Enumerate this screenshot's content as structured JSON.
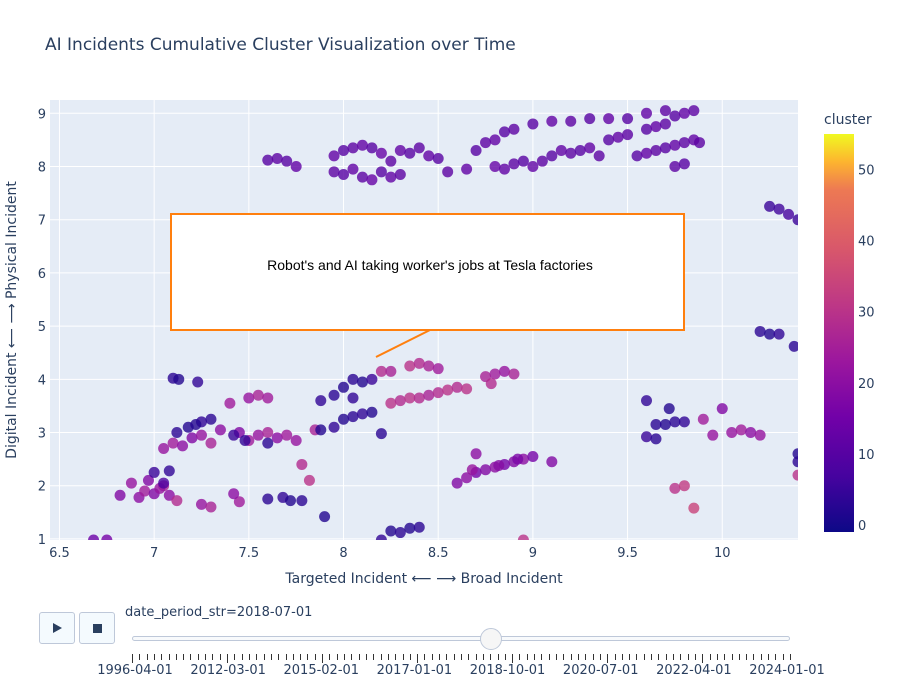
{
  "chart_data": {
    "type": "scatter",
    "title": "AI Incidents Cumulative Cluster Visualization over Time",
    "xlabel": "Targeted Incident ⟵ ⟶ Broad Incident",
    "ylabel": "Digital Incident ⟵ ⟶ Physical Incident",
    "xlim": [
      6.45,
      10.4
    ],
    "ylim": [
      0.98,
      9.25
    ],
    "x_ticks": [
      6.5,
      7,
      7.5,
      8,
      8.5,
      9,
      9.5,
      10
    ],
    "y_ticks": [
      1,
      2,
      3,
      4,
      5,
      6,
      7,
      8,
      9
    ],
    "grid": true,
    "colorscale": "plasma",
    "colorbar": {
      "title": "cluster",
      "range": [
        -1,
        55
      ],
      "ticks": [
        0,
        10,
        20,
        30,
        40,
        50
      ]
    },
    "annotation": {
      "text": "Robot's and AI taking worker's jobs at Tesla factories",
      "x": 8.17,
      "y": 4.45
    },
    "points": [
      [
        6.68,
        0.98,
        14
      ],
      [
        6.75,
        0.98,
        16
      ],
      [
        6.82,
        1.82,
        18
      ],
      [
        6.88,
        2.05,
        22
      ],
      [
        6.92,
        1.78,
        20
      ],
      [
        6.95,
        1.9,
        24
      ],
      [
        7.0,
        1.85,
        18
      ],
      [
        7.05,
        2.0,
        26
      ],
      [
        7.08,
        1.82,
        20
      ],
      [
        7.12,
        1.72,
        28
      ],
      [
        6.97,
        2.1,
        18
      ],
      [
        7.03,
        1.95,
        22
      ],
      [
        7.0,
        2.25,
        5
      ],
      [
        7.08,
        2.28,
        4
      ],
      [
        7.05,
        2.05,
        8
      ],
      [
        7.05,
        2.7,
        22
      ],
      [
        7.1,
        2.8,
        24
      ],
      [
        7.15,
        2.75,
        20
      ],
      [
        7.2,
        2.9,
        18
      ],
      [
        7.25,
        2.95,
        22
      ],
      [
        7.3,
        2.8,
        26
      ],
      [
        7.35,
        3.05,
        20
      ],
      [
        7.45,
        3.0,
        18
      ],
      [
        7.5,
        2.85,
        24
      ],
      [
        7.55,
        2.95,
        22
      ],
      [
        7.6,
        3.0,
        26
      ],
      [
        7.65,
        2.9,
        20
      ],
      [
        7.7,
        2.95,
        24
      ],
      [
        7.75,
        2.85,
        22
      ],
      [
        7.85,
        3.05,
        26
      ],
      [
        7.78,
        2.4,
        28
      ],
      [
        7.82,
        2.1,
        30
      ],
      [
        7.12,
        3.0,
        3
      ],
      [
        7.18,
        3.1,
        2
      ],
      [
        7.25,
        3.2,
        4
      ],
      [
        7.3,
        3.25,
        3
      ],
      [
        7.22,
        3.15,
        2
      ],
      [
        7.42,
        2.95,
        5
      ],
      [
        7.48,
        2.85,
        4
      ],
      [
        7.6,
        2.8,
        3
      ],
      [
        7.88,
        3.05,
        2
      ],
      [
        7.95,
        3.1,
        4
      ],
      [
        8.0,
        3.25,
        2
      ],
      [
        8.05,
        3.3,
        3
      ],
      [
        8.1,
        3.35,
        4
      ],
      [
        8.15,
        3.38,
        2
      ],
      [
        8.2,
        2.98,
        3
      ],
      [
        7.1,
        4.02,
        3
      ],
      [
        7.13,
        4.0,
        2
      ],
      [
        7.23,
        3.95,
        4
      ],
      [
        7.4,
        3.55,
        24
      ],
      [
        7.5,
        3.65,
        22
      ],
      [
        7.55,
        3.7,
        26
      ],
      [
        7.6,
        3.65,
        24
      ],
      [
        7.6,
        1.75,
        3
      ],
      [
        7.68,
        1.78,
        4
      ],
      [
        7.72,
        1.72,
        2
      ],
      [
        7.78,
        1.72,
        3
      ],
      [
        7.9,
        1.42,
        2
      ],
      [
        7.45,
        1.7,
        24
      ],
      [
        7.25,
        1.65,
        22
      ],
      [
        7.3,
        1.6,
        26
      ],
      [
        7.42,
        1.85,
        20
      ],
      [
        7.88,
        3.6,
        4
      ],
      [
        7.95,
        3.7,
        3
      ],
      [
        8.0,
        3.85,
        2
      ],
      [
        8.05,
        3.65,
        4
      ],
      [
        8.05,
        4.0,
        3
      ],
      [
        8.1,
        3.95,
        2
      ],
      [
        8.15,
        4.0,
        5
      ],
      [
        8.2,
        4.15,
        28
      ],
      [
        8.25,
        4.15,
        26
      ],
      [
        8.35,
        4.25,
        30
      ],
      [
        8.4,
        4.3,
        28
      ],
      [
        8.45,
        4.25,
        26
      ],
      [
        8.5,
        4.2,
        24
      ],
      [
        8.25,
        3.55,
        30
      ],
      [
        8.3,
        3.6,
        28
      ],
      [
        8.35,
        3.65,
        30
      ],
      [
        8.4,
        3.65,
        28
      ],
      [
        8.45,
        3.7,
        26
      ],
      [
        8.5,
        3.75,
        28
      ],
      [
        8.55,
        3.8,
        30
      ],
      [
        8.6,
        3.85,
        28
      ],
      [
        8.65,
        3.82,
        30
      ],
      [
        8.75,
        4.05,
        26
      ],
      [
        8.8,
        4.1,
        24
      ],
      [
        8.85,
        4.15,
        22
      ],
      [
        8.9,
        4.1,
        26
      ],
      [
        8.78,
        3.92,
        28
      ],
      [
        8.6,
        2.05,
        18
      ],
      [
        8.65,
        2.15,
        20
      ],
      [
        8.7,
        2.25,
        16
      ],
      [
        8.75,
        2.3,
        18
      ],
      [
        8.8,
        2.35,
        20
      ],
      [
        8.85,
        2.4,
        16
      ],
      [
        8.9,
        2.45,
        18
      ],
      [
        8.95,
        2.5,
        20
      ],
      [
        9.0,
        2.55,
        16
      ],
      [
        8.7,
        2.6,
        20
      ],
      [
        9.1,
        2.45,
        18
      ],
      [
        8.68,
        2.3,
        22
      ],
      [
        8.92,
        2.5,
        17
      ],
      [
        8.82,
        2.38,
        19
      ],
      [
        8.25,
        1.15,
        2
      ],
      [
        8.3,
        1.12,
        3
      ],
      [
        8.35,
        1.2,
        2
      ],
      [
        8.2,
        0.98,
        4
      ],
      [
        8.4,
        1.22,
        3
      ],
      [
        8.95,
        0.98,
        30
      ],
      [
        9.6,
        3.6,
        4
      ],
      [
        9.65,
        3.15,
        3
      ],
      [
        9.72,
        3.45,
        2
      ],
      [
        9.8,
        3.2,
        4
      ],
      [
        9.6,
        2.92,
        5
      ],
      [
        9.65,
        2.88,
        3
      ],
      [
        9.7,
        3.15,
        2
      ],
      [
        9.75,
        3.2,
        3
      ],
      [
        9.75,
        1.95,
        30
      ],
      [
        9.8,
        2.0,
        32
      ],
      [
        9.85,
        1.58,
        34
      ],
      [
        9.9,
        3.25,
        24
      ],
      [
        9.95,
        2.95,
        22
      ],
      [
        10.0,
        3.45,
        18
      ],
      [
        10.05,
        3.0,
        22
      ],
      [
        10.1,
        3.05,
        24
      ],
      [
        10.15,
        3.0,
        20
      ],
      [
        10.2,
        2.95,
        22
      ],
      [
        10.2,
        4.9,
        3
      ],
      [
        10.25,
        4.85,
        2
      ],
      [
        10.3,
        4.85,
        4
      ],
      [
        10.38,
        4.62,
        3
      ],
      [
        10.4,
        2.6,
        2
      ],
      [
        10.4,
        2.45,
        3
      ],
      [
        10.4,
        2.2,
        30
      ],
      [
        10.25,
        7.25,
        5
      ],
      [
        10.3,
        7.2,
        6
      ],
      [
        10.35,
        7.1,
        7
      ],
      [
        10.4,
        7.0,
        5
      ],
      [
        7.6,
        8.12,
        10
      ],
      [
        7.65,
        8.15,
        11
      ],
      [
        7.7,
        8.1,
        10
      ],
      [
        7.75,
        8.0,
        12
      ],
      [
        7.95,
        7.9,
        11
      ],
      [
        8.0,
        7.85,
        10
      ],
      [
        8.05,
        7.95,
        12
      ],
      [
        8.1,
        7.8,
        11
      ],
      [
        8.15,
        7.75,
        13
      ],
      [
        8.2,
        7.9,
        10
      ],
      [
        8.25,
        7.8,
        12
      ],
      [
        8.3,
        7.85,
        11
      ],
      [
        7.95,
        8.2,
        12
      ],
      [
        8.0,
        8.3,
        10
      ],
      [
        8.05,
        8.35,
        11
      ],
      [
        8.1,
        8.4,
        12
      ],
      [
        8.15,
        8.35,
        10
      ],
      [
        8.2,
        8.25,
        13
      ],
      [
        8.25,
        8.1,
        11
      ],
      [
        8.3,
        8.3,
        12
      ],
      [
        8.35,
        8.25,
        10
      ],
      [
        8.4,
        8.35,
        11
      ],
      [
        8.45,
        8.2,
        12
      ],
      [
        8.5,
        8.15,
        10
      ],
      [
        8.55,
        7.9,
        11
      ],
      [
        8.65,
        7.95,
        12
      ],
      [
        8.7,
        8.3,
        10
      ],
      [
        8.75,
        8.45,
        11
      ],
      [
        8.8,
        8.5,
        12
      ],
      [
        8.85,
        8.65,
        10
      ],
      [
        8.9,
        8.7,
        11
      ],
      [
        8.8,
        8.0,
        13
      ],
      [
        8.85,
        7.95,
        12
      ],
      [
        8.9,
        8.05,
        11
      ],
      [
        8.95,
        8.1,
        10
      ],
      [
        9.0,
        8.0,
        12
      ],
      [
        9.05,
        8.1,
        11
      ],
      [
        9.1,
        8.2,
        10
      ],
      [
        9.15,
        8.3,
        12
      ],
      [
        9.2,
        8.25,
        11
      ],
      [
        9.25,
        8.3,
        10
      ],
      [
        9.3,
        8.35,
        12
      ],
      [
        9.35,
        8.2,
        11
      ],
      [
        9.4,
        8.5,
        10
      ],
      [
        9.45,
        8.55,
        12
      ],
      [
        9.5,
        8.6,
        11
      ],
      [
        9.55,
        8.2,
        10
      ],
      [
        9.6,
        8.25,
        12
      ],
      [
        9.65,
        8.3,
        11
      ],
      [
        9.7,
        8.35,
        10
      ],
      [
        9.75,
        8.4,
        12
      ],
      [
        9.8,
        8.45,
        11
      ],
      [
        9.6,
        8.7,
        10
      ],
      [
        9.65,
        8.75,
        12
      ],
      [
        9.7,
        8.8,
        11
      ],
      [
        9.5,
        8.9,
        10
      ],
      [
        9.6,
        9.0,
        12
      ],
      [
        9.7,
        9.05,
        11
      ],
      [
        9.75,
        8.95,
        10
      ],
      [
        9.8,
        9.0,
        12
      ],
      [
        9.85,
        9.05,
        11
      ],
      [
        9.0,
        8.8,
        10
      ],
      [
        9.1,
        8.85,
        12
      ],
      [
        9.2,
        8.85,
        11
      ],
      [
        9.3,
        8.9,
        10
      ],
      [
        9.4,
        8.9,
        12
      ],
      [
        9.75,
        8.0,
        11
      ],
      [
        9.8,
        8.05,
        10
      ],
      [
        9.85,
        8.5,
        12
      ],
      [
        9.88,
        8.45,
        11
      ]
    ]
  },
  "controls": {
    "slider_label": "date_period_str=2018-07-01",
    "slider_value": 0.545,
    "slider_ticks": [
      "1996-04-01",
      "2012-03-01",
      "2015-02-01",
      "2017-01-01",
      "2018-10-01",
      "2020-07-01",
      "2022-04-01",
      "2024-01-01"
    ]
  }
}
